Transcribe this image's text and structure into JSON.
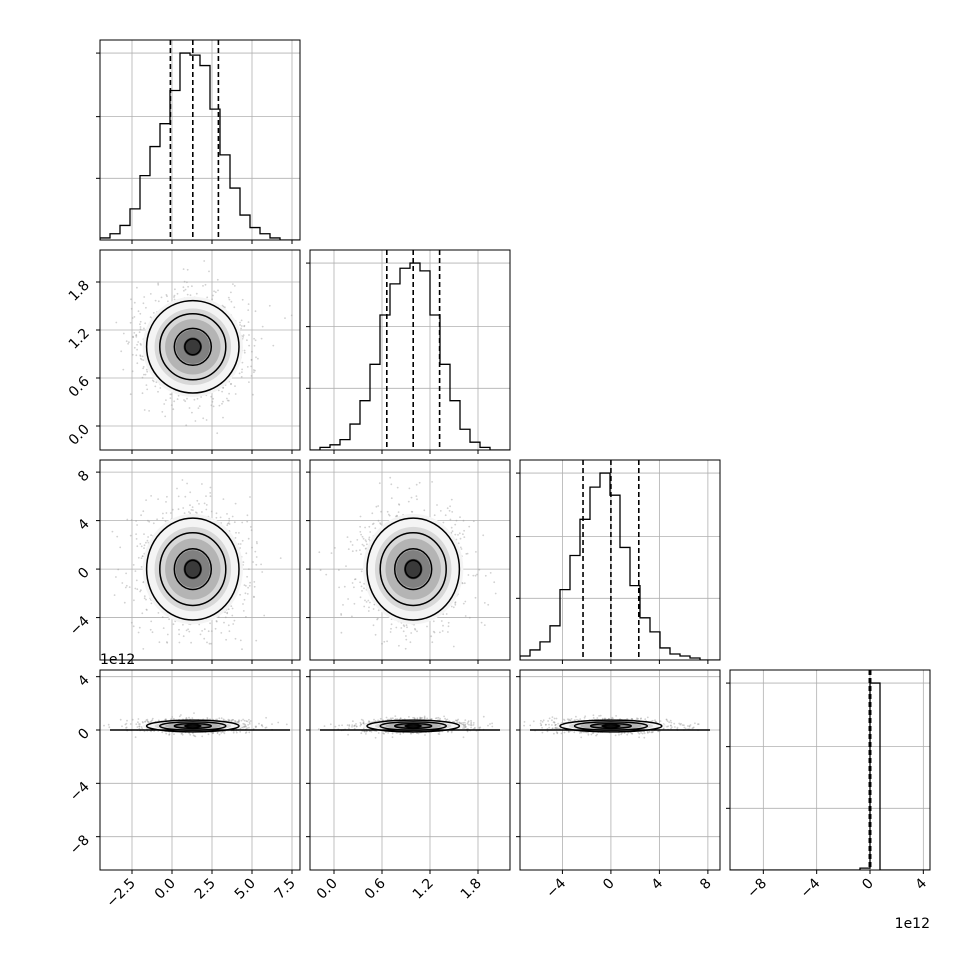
{
  "chart_data": {
    "type": "corner",
    "title": "",
    "grid": true,
    "legend": "none",
    "parameters": [
      {
        "index": 0,
        "ticks": [
          -2.5,
          0.0,
          2.5,
          5.0,
          7.5
        ],
        "tick_labels": [
          "−2.5",
          "0.0",
          "2.5",
          "5.0",
          "7.5"
        ],
        "range": [
          -4.5,
          8.0
        ],
        "quantiles": [
          -0.1,
          1.3,
          2.9
        ],
        "offset_text": ""
      },
      {
        "index": 1,
        "ticks": [
          0.0,
          0.6,
          1.2,
          1.8
        ],
        "tick_labels": [
          "0.0",
          "0.6",
          "1.2",
          "1.8"
        ],
        "range": [
          -0.3,
          2.2
        ],
        "quantiles": [
          0.66,
          0.99,
          1.32
        ],
        "offset_text": ""
      },
      {
        "index": 2,
        "ticks": [
          -4,
          0,
          4,
          8
        ],
        "tick_labels": [
          "−4",
          "0",
          "4",
          "8"
        ],
        "range": [
          -7.5,
          9.0
        ],
        "quantiles": [
          -2.3,
          0.0,
          2.3
        ],
        "offset_text": ""
      },
      {
        "index": 3,
        "ticks": [
          -8,
          -4,
          0,
          4
        ],
        "tick_labels": [
          "−8",
          "−4",
          "0",
          "4"
        ],
        "range": [
          -10.5,
          4.5
        ],
        "quantiles": [
          -0.05,
          0.0,
          0.05
        ],
        "offset_text": "1e12"
      }
    ],
    "histograms": [
      {
        "param": 0,
        "bin_edges": [
          -4.5,
          -3.875,
          -3.25,
          -2.625,
          -2.0,
          -1.375,
          -0.75,
          -0.125,
          0.5,
          1.125,
          1.75,
          2.375,
          3.0,
          3.625,
          4.25,
          4.875,
          5.5,
          6.125,
          6.75,
          7.375,
          8.0
        ],
        "counts": [
          1,
          3,
          7,
          15,
          31,
          45,
          56,
          72,
          90,
          89,
          84,
          63,
          41,
          25,
          12,
          6,
          3,
          1,
          0,
          0
        ]
      },
      {
        "param": 1,
        "bin_edges": [
          -0.3,
          -0.175,
          -0.05,
          0.075,
          0.2,
          0.325,
          0.45,
          0.575,
          0.7,
          0.825,
          0.95,
          1.075,
          1.2,
          1.325,
          1.45,
          1.575,
          1.7,
          1.825,
          1.95,
          2.075,
          2.2
        ],
        "counts": [
          0,
          1,
          2,
          4,
          10,
          19,
          33,
          52,
          64,
          70,
          72,
          69,
          52,
          33,
          19,
          8,
          3,
          1,
          0,
          0
        ]
      },
      {
        "param": 2,
        "bin_edges": [
          -7.5,
          -6.675,
          -5.85,
          -5.025,
          -4.2,
          -3.375,
          -2.55,
          -1.725,
          -0.9,
          -0.075,
          0.75,
          1.575,
          2.4,
          3.225,
          4.05,
          4.875,
          5.7,
          6.525,
          7.35,
          8.175,
          9.0
        ],
        "counts": [
          2,
          5,
          9,
          17,
          35,
          52,
          70,
          86,
          93,
          82,
          56,
          37,
          21,
          14,
          6,
          3,
          2,
          1,
          0,
          0
        ]
      },
      {
        "param": 3,
        "bin_edges": [
          -10.5,
          -9.75,
          -9.0,
          -8.25,
          -7.5,
          -6.75,
          -6.0,
          -5.25,
          -4.5,
          -3.75,
          -3.0,
          -2.25,
          -1.5,
          -0.75,
          0.0,
          0.75,
          1.5,
          2.25,
          3.0,
          3.75,
          4.5
        ],
        "counts": [
          0,
          0,
          0,
          0,
          0,
          0,
          0,
          0,
          0,
          0,
          0,
          0,
          0,
          1,
          100,
          0,
          0,
          0,
          0,
          0
        ]
      }
    ],
    "contours": [
      {
        "x_param": 0,
        "y_param": 1,
        "center": [
          1.3,
          0.99
        ],
        "sigma": [
          1.65,
          0.33
        ]
      },
      {
        "x_param": 0,
        "y_param": 2,
        "center": [
          1.3,
          0.0
        ],
        "sigma": [
          1.65,
          2.4
        ]
      },
      {
        "x_param": 1,
        "y_param": 2,
        "center": [
          0.99,
          0.0
        ],
        "sigma": [
          0.33,
          2.4
        ]
      },
      {
        "x_param": 0,
        "y_param": 3,
        "center": [
          1.3,
          0.3
        ],
        "sigma": [
          1.65,
          0.25
        ]
      },
      {
        "x_param": 1,
        "y_param": 3,
        "center": [
          0.99,
          0.3
        ],
        "sigma": [
          0.33,
          0.25
        ]
      },
      {
        "x_param": 2,
        "y_param": 3,
        "center": [
          0.0,
          0.3
        ],
        "sigma": [
          2.4,
          0.25
        ]
      }
    ],
    "colors": {
      "line": "#000000",
      "grid": "#b0b0b0",
      "points": "#9a9a9a"
    }
  }
}
